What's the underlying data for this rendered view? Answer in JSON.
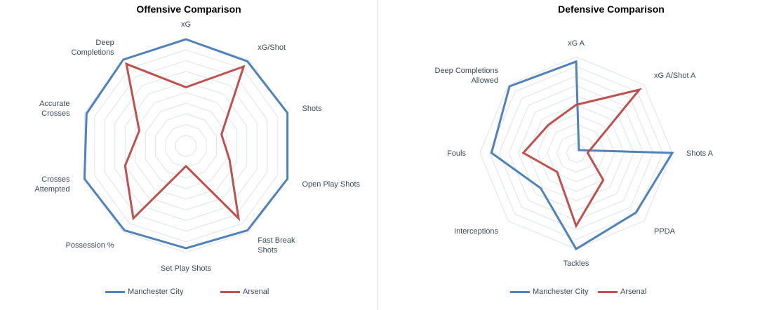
{
  "chart_data": [
    {
      "type": "radar",
      "title": "Offensive Comparison",
      "categories": [
        "xG",
        "xG/Shot",
        "Shots",
        "Open Play Shots",
        "Fast Break Shots",
        "Set Play Shots",
        "Possession %",
        "Crosses Attempted",
        "Accurate Crosses",
        "Deep Completions"
      ],
      "rlim": [
        0,
        10
      ],
      "grid": true,
      "legend_position": "bottom",
      "series": [
        {
          "name": "Manchester City",
          "color": "#4f81bd",
          "values": [
            10,
            9.8,
            10,
            10,
            9.8,
            9.6,
            9.8,
            10,
            9.8,
            10
          ]
        },
        {
          "name": "Arsenal",
          "color": "#c0504d",
          "values": [
            5.5,
            9.2,
            3.5,
            4.3,
            8.4,
            1.9,
            8.4,
            6.0,
            4.6,
            9.5
          ]
        }
      ]
    },
    {
      "type": "radar",
      "title": "Defensive Comparison",
      "categories": [
        "xG A",
        "xG A/Shot A",
        "Shots A",
        "PPDA",
        "Tackles",
        "Interceptions",
        "Fouls",
        "Deep Completions Allowed"
      ],
      "rlim": [
        0,
        10
      ],
      "grid": true,
      "legend_position": "bottom",
      "series": [
        {
          "name": "Manchester City",
          "color": "#4f81bd",
          "values": [
            9.5,
            0.4,
            10,
            8.8,
            10,
            5.2,
            8.8,
            9.8
          ]
        },
        {
          "name": "Arsenal",
          "color": "#c0504d",
          "values": [
            5.0,
            9.3,
            1.2,
            4.0,
            7.6,
            2.8,
            5.5,
            4.1
          ]
        }
      ]
    }
  ]
}
